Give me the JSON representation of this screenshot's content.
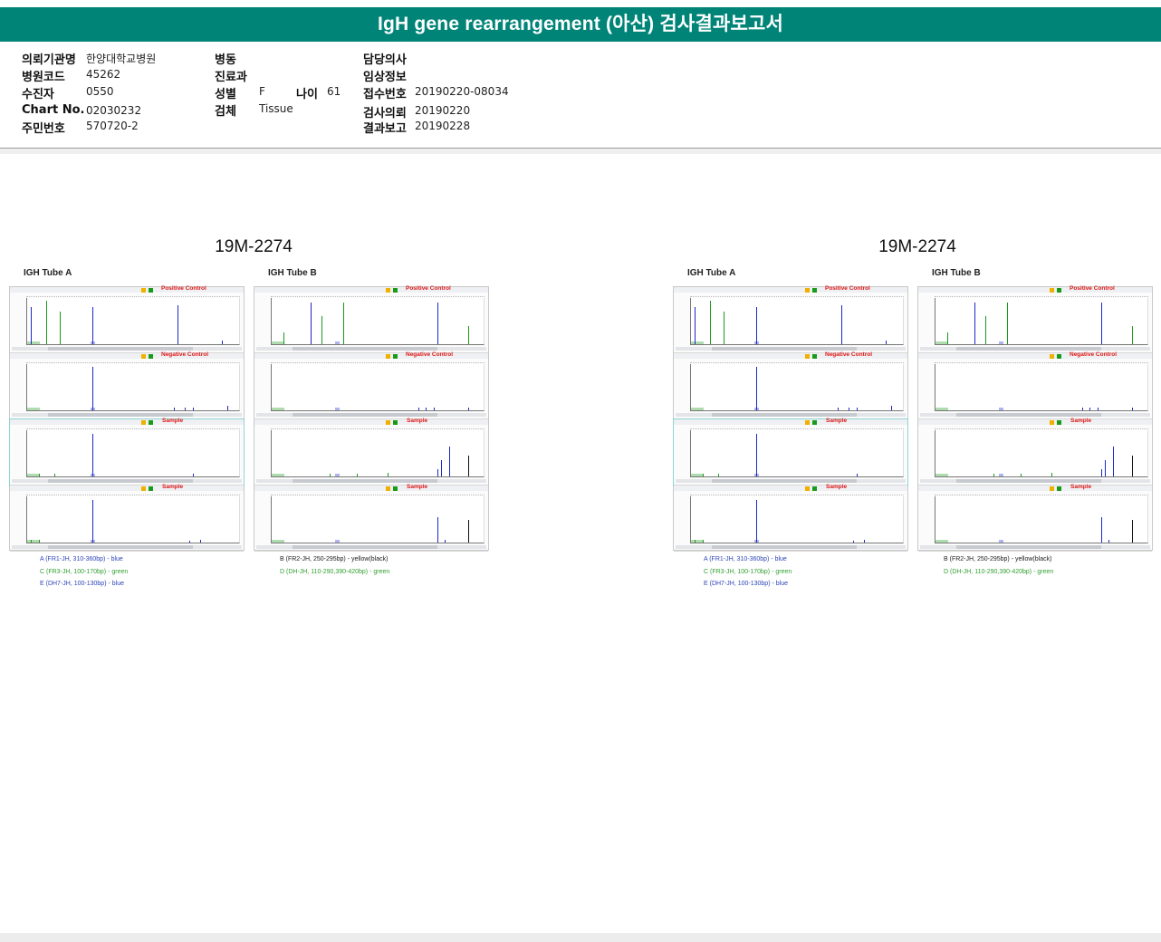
{
  "header": {
    "title": "IgH gene rearrangement (아산) 검사결과보고서"
  },
  "info": {
    "institution": {
      "label": "의뢰기관명",
      "value": "한양대학교병원"
    },
    "hospital_code": {
      "label": "병원코드",
      "value": "45262"
    },
    "patient": {
      "label": "수진자",
      "value": "0550"
    },
    "chart_no": {
      "label": "Chart No.",
      "value": "02030232"
    },
    "resident_no": {
      "label": "주민번호",
      "value": "570720-2"
    },
    "ward": {
      "label": "병동",
      "value": ""
    },
    "department": {
      "label": "진료과",
      "value": ""
    },
    "sex": {
      "label": "성별",
      "value": "F"
    },
    "age": {
      "label": "나이",
      "value": "61"
    },
    "specimen": {
      "label": "검체",
      "value": "Tissue"
    },
    "doctor": {
      "label": "담당의사",
      "value": ""
    },
    "clinical": {
      "label": "임상정보",
      "value": ""
    },
    "receipt_no": {
      "label": "접수번호",
      "value": "20190220-08034"
    },
    "request_date": {
      "label": "검사의뢰",
      "value": "20190220"
    },
    "report_date": {
      "label": "결과보고",
      "value": "20190228"
    }
  },
  "reports": [
    {
      "id": "19M-2274",
      "tube_a": "IGH Tube  A",
      "tube_b": "IGH Tube  B",
      "panel_labels": [
        "Positive Control",
        "Negative Control",
        "Sample",
        "Sample"
      ],
      "legend_a": [
        {
          "text": "A (FR1-JH, 310-360bp) - blue",
          "color": "#2e46b8"
        },
        {
          "text": "C (FR3-JH, 100-170bp) - green",
          "color": "#33a033"
        },
        {
          "text": "E (DH7-JH, 100-130bp) - blue",
          "color": "#2e46b8"
        }
      ],
      "legend_b": [
        {
          "text": "B (FR2-JH, 250-295bp) - yellow(black)",
          "color": "#222222"
        },
        {
          "text": "D (DH-JH, 110-290,390-420bp) - green",
          "color": "#33a033"
        }
      ]
    },
    {
      "id": "19M-2274",
      "tube_a": "IGH Tube  A",
      "tube_b": "IGH Tube  B",
      "panel_labels": [
        "Positive Control",
        "Negative Control",
        "Sample",
        "Sample"
      ],
      "legend_a": [
        {
          "text": "A (FR1-JH, 310-360bp) - blue",
          "color": "#2e46b8"
        },
        {
          "text": "C (FR3-JH, 100-170bp) - green",
          "color": "#33a033"
        },
        {
          "text": "E (DH7-JH, 100-130bp) - blue",
          "color": "#2e46b8"
        }
      ],
      "legend_b": [
        {
          "text": "B (FR2-JH, 250-295bp) - yellow(black)",
          "color": "#222222"
        },
        {
          "text": "D (DH-JH, 110-290,390-420bp) - green",
          "color": "#33a033"
        }
      ]
    }
  ],
  "colors": {
    "header_bg": "#008478",
    "control_label": "#e01818",
    "peak_blue": "#1c28c8",
    "peak_green": "#1a9a1a",
    "peak_black": "#111111"
  }
}
